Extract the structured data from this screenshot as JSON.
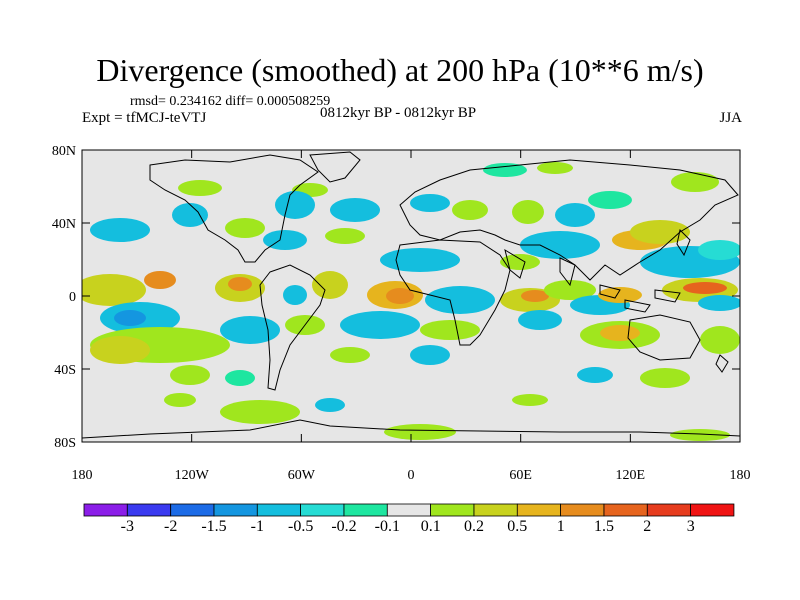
{
  "header": {
    "title": "Divergence (smoothed) at 200 hPa (10**6 m/s)",
    "stats": "rmsd= 0.234162 diff= 0.000508259",
    "experiment": "Expt = tfMCJ-teVTJ",
    "period": "0812kyr BP - 0812kyr BP",
    "season": "JJA"
  },
  "axes": {
    "lat_labels": [
      "80N",
      "40N",
      "0",
      "40S",
      "80S"
    ],
    "lon_labels": [
      "180",
      "120W",
      "60W",
      "0",
      "60E",
      "120E",
      "180"
    ]
  },
  "colorbar": {
    "labels": [
      "-3",
      "-2",
      "-1.5",
      "-1",
      "-0.5",
      "-0.2",
      "-0.1",
      "0.1",
      "0.2",
      "0.5",
      "1",
      "1.5",
      "2",
      "3"
    ],
    "colors": [
      "#8b1ee8",
      "#3a3af0",
      "#1c6be6",
      "#1496e0",
      "#14bede",
      "#26dcd4",
      "#1ee6a0",
      "#e6e6e6",
      "#a0e61e",
      "#c8d21e",
      "#e6b41e",
      "#e68c1e",
      "#e6641e",
      "#e63c1e",
      "#f01414"
    ]
  },
  "colors": {
    "neutral_fill": "#e6e6e6",
    "coast": "#000000"
  }
}
